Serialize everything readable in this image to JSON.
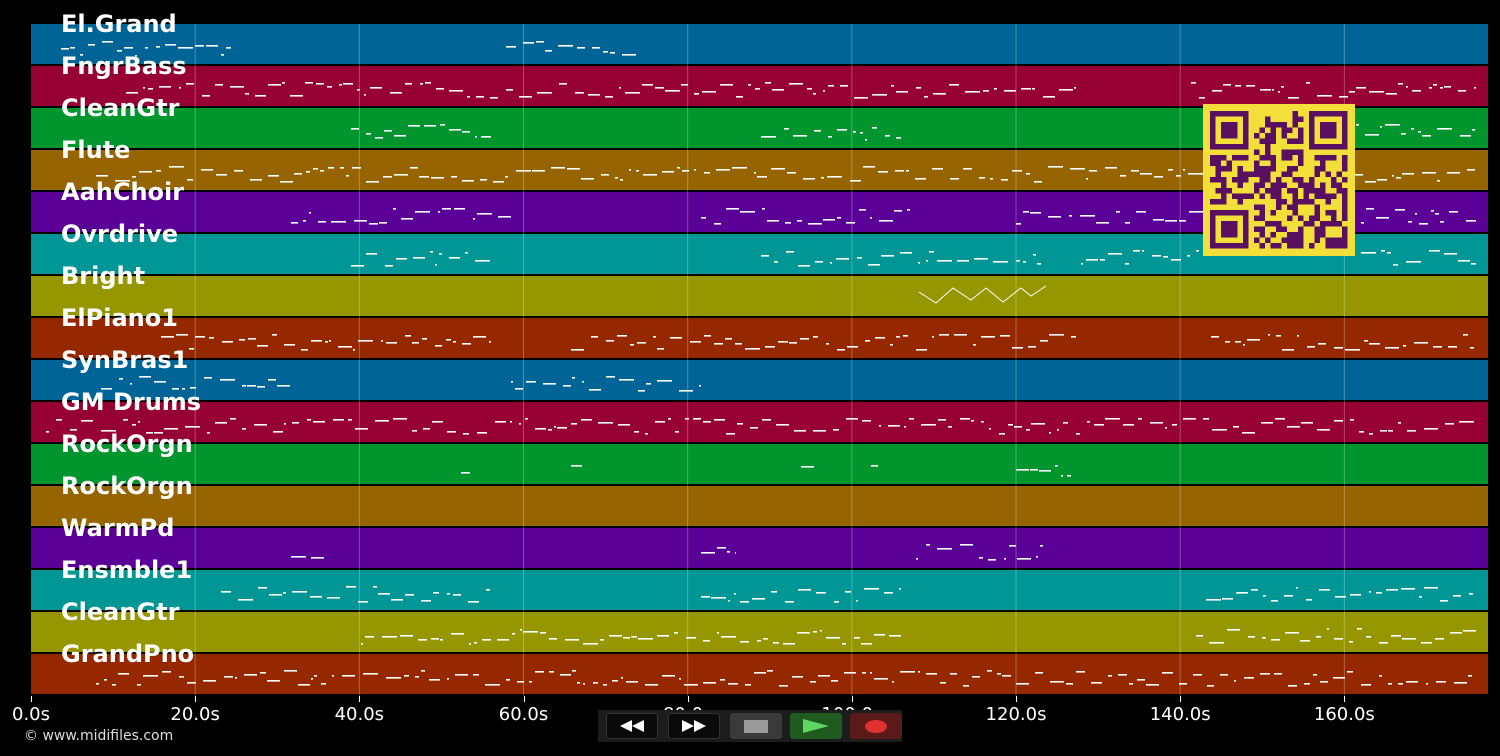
{
  "tracks": [
    {
      "name": "El.Grand",
      "color": "#006496"
    },
    {
      "name": "FngrBass",
      "color": "#960032"
    },
    {
      "name": "CleanGtr",
      "color": "#00962d"
    },
    {
      "name": "Flute",
      "color": "#966400"
    },
    {
      "name": "AahChoir",
      "color": "#5a0096"
    },
    {
      "name": "Ovrdrive",
      "color": "#009696"
    },
    {
      "name": "Bright",
      "color": "#969600"
    },
    {
      "name": "ElPiano1",
      "color": "#962800"
    },
    {
      "name": "SynBras1",
      "color": "#006496"
    },
    {
      "name": "GM Drums",
      "color": "#960032"
    },
    {
      "name": "RockOrgn",
      "color": "#00962d"
    },
    {
      "name": "RockOrgn",
      "color": "#966400"
    },
    {
      "name": "WarmPd",
      "color": "#5a0096"
    },
    {
      "name": "Ensmble1",
      "color": "#009696"
    },
    {
      "name": "CleanGtr",
      "color": "#969600"
    },
    {
      "name": "GrandPno",
      "color": "#962800"
    }
  ],
  "timeline": {
    "labels": [
      "0.0s",
      "20.0s",
      "40.0s",
      "60.0s",
      "80.0s",
      "100.0s",
      "120.0s",
      "140.0s",
      "160.0s"
    ],
    "max_seconds": 177.5
  },
  "copyright": "© www.midifiles.com",
  "transport": {
    "rewind_icon": "rewind-icon",
    "fast_forward_icon": "fast-forward-icon",
    "stop_icon": "stop-icon",
    "play_icon": "play-icon",
    "record_icon": "record-icon"
  }
}
